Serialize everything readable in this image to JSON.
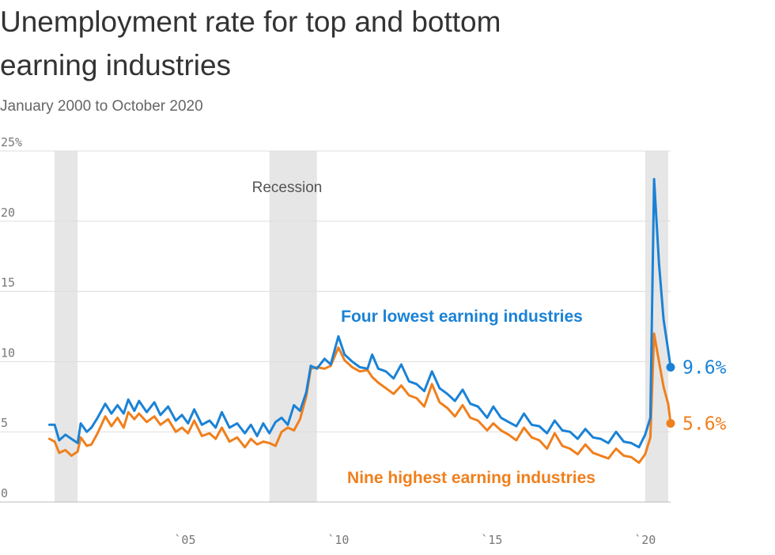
{
  "header": {
    "title": "Unemployment rate for top and bottom earning industries",
    "subtitle": "January 2000 to October 2020"
  },
  "chart_data": {
    "type": "line",
    "title": "Unemployment rate for top and bottom earning industries",
    "subtitle": "January 2000 to October 2020",
    "ylim": [
      0,
      25
    ],
    "xlim": [
      2000.0,
      2020.83
    ],
    "y_ticks": [
      {
        "value": 25,
        "label": "25%"
      },
      {
        "value": 20,
        "label": "20"
      },
      {
        "value": 15,
        "label": "15"
      },
      {
        "value": 10,
        "label": "10"
      },
      {
        "value": 5,
        "label": "5"
      },
      {
        "value": 0,
        "label": "0"
      }
    ],
    "x_ticks": [
      {
        "value": 2005,
        "label": "`05"
      },
      {
        "value": 2010,
        "label": "`10"
      },
      {
        "value": 2015,
        "label": "`15"
      },
      {
        "value": 2020,
        "label": "`20"
      }
    ],
    "grid": true,
    "recession_label": "Recession",
    "recessions": [
      [
        2000.75,
        2001.5
      ],
      [
        2007.75,
        2009.3
      ],
      [
        2020.0,
        2020.75
      ]
    ],
    "series": [
      {
        "name": "Four lowest earning industries",
        "label": "Four lowest earning industries",
        "color": "#1a82d6",
        "end_label": "9.6%",
        "points": [
          [
            2000.58,
            5.5
          ],
          [
            2000.75,
            5.5
          ],
          [
            2000.9,
            4.4
          ],
          [
            2001.1,
            4.8
          ],
          [
            2001.3,
            4.5
          ],
          [
            2001.5,
            4.2
          ],
          [
            2001.6,
            5.6
          ],
          [
            2001.8,
            5.0
          ],
          [
            2001.95,
            5.3
          ],
          [
            2002.15,
            6.0
          ],
          [
            2002.4,
            7.0
          ],
          [
            2002.6,
            6.3
          ],
          [
            2002.8,
            6.9
          ],
          [
            2003.0,
            6.3
          ],
          [
            2003.15,
            7.3
          ],
          [
            2003.35,
            6.5
          ],
          [
            2003.5,
            7.2
          ],
          [
            2003.75,
            6.4
          ],
          [
            2004.0,
            7.1
          ],
          [
            2004.2,
            6.2
          ],
          [
            2004.45,
            6.8
          ],
          [
            2004.7,
            5.8
          ],
          [
            2004.9,
            6.2
          ],
          [
            2005.1,
            5.6
          ],
          [
            2005.3,
            6.6
          ],
          [
            2005.55,
            5.5
          ],
          [
            2005.8,
            5.8
          ],
          [
            2006.0,
            5.3
          ],
          [
            2006.2,
            6.4
          ],
          [
            2006.45,
            5.3
          ],
          [
            2006.7,
            5.6
          ],
          [
            2006.95,
            4.9
          ],
          [
            2007.15,
            5.5
          ],
          [
            2007.35,
            4.7
          ],
          [
            2007.55,
            5.6
          ],
          [
            2007.75,
            4.9
          ],
          [
            2007.95,
            5.7
          ],
          [
            2008.15,
            6.0
          ],
          [
            2008.35,
            5.5
          ],
          [
            2008.55,
            6.9
          ],
          [
            2008.75,
            6.5
          ],
          [
            2008.95,
            7.8
          ],
          [
            2009.1,
            9.7
          ],
          [
            2009.3,
            9.5
          ],
          [
            2009.55,
            10.2
          ],
          [
            2009.75,
            9.8
          ],
          [
            2010.0,
            11.8
          ],
          [
            2010.2,
            10.5
          ],
          [
            2010.45,
            10.0
          ],
          [
            2010.7,
            9.6
          ],
          [
            2010.95,
            9.5
          ],
          [
            2011.1,
            10.5
          ],
          [
            2011.3,
            9.5
          ],
          [
            2011.55,
            9.3
          ],
          [
            2011.8,
            8.8
          ],
          [
            2012.05,
            9.8
          ],
          [
            2012.3,
            8.6
          ],
          [
            2012.55,
            8.4
          ],
          [
            2012.8,
            7.9
          ],
          [
            2013.05,
            9.3
          ],
          [
            2013.3,
            8.1
          ],
          [
            2013.55,
            7.7
          ],
          [
            2013.8,
            7.2
          ],
          [
            2014.05,
            8.0
          ],
          [
            2014.3,
            7.0
          ],
          [
            2014.55,
            6.8
          ],
          [
            2014.85,
            6.0
          ],
          [
            2015.05,
            6.8
          ],
          [
            2015.3,
            6.0
          ],
          [
            2015.55,
            5.7
          ],
          [
            2015.8,
            5.4
          ],
          [
            2016.05,
            6.3
          ],
          [
            2016.3,
            5.5
          ],
          [
            2016.55,
            5.4
          ],
          [
            2016.8,
            4.9
          ],
          [
            2017.05,
            5.8
          ],
          [
            2017.3,
            5.1
          ],
          [
            2017.55,
            5.0
          ],
          [
            2017.8,
            4.5
          ],
          [
            2018.05,
            5.2
          ],
          [
            2018.3,
            4.6
          ],
          [
            2018.55,
            4.5
          ],
          [
            2018.8,
            4.2
          ],
          [
            2019.05,
            5.0
          ],
          [
            2019.3,
            4.3
          ],
          [
            2019.55,
            4.2
          ],
          [
            2019.8,
            3.9
          ],
          [
            2020.0,
            4.8
          ],
          [
            2020.17,
            6.0
          ],
          [
            2020.29,
            23.0
          ],
          [
            2020.45,
            17.0
          ],
          [
            2020.6,
            13.0
          ],
          [
            2020.75,
            10.8
          ],
          [
            2020.83,
            9.6
          ]
        ]
      },
      {
        "name": "Nine highest earning industries",
        "label": "Nine highest earning industries",
        "color": "#f07f1c",
        "end_label": "5.6%",
        "points": [
          [
            2000.58,
            4.5
          ],
          [
            2000.75,
            4.3
          ],
          [
            2000.9,
            3.5
          ],
          [
            2001.1,
            3.7
          ],
          [
            2001.3,
            3.3
          ],
          [
            2001.5,
            3.6
          ],
          [
            2001.6,
            4.6
          ],
          [
            2001.8,
            4.0
          ],
          [
            2001.95,
            4.1
          ],
          [
            2002.15,
            4.9
          ],
          [
            2002.4,
            6.1
          ],
          [
            2002.6,
            5.4
          ],
          [
            2002.8,
            6.0
          ],
          [
            2003.0,
            5.3
          ],
          [
            2003.15,
            6.4
          ],
          [
            2003.35,
            5.9
          ],
          [
            2003.5,
            6.3
          ],
          [
            2003.75,
            5.7
          ],
          [
            2004.0,
            6.1
          ],
          [
            2004.2,
            5.5
          ],
          [
            2004.45,
            5.9
          ],
          [
            2004.7,
            5.0
          ],
          [
            2004.9,
            5.3
          ],
          [
            2005.1,
            4.9
          ],
          [
            2005.3,
            5.8
          ],
          [
            2005.55,
            4.7
          ],
          [
            2005.8,
            4.9
          ],
          [
            2006.0,
            4.5
          ],
          [
            2006.2,
            5.3
          ],
          [
            2006.45,
            4.3
          ],
          [
            2006.7,
            4.6
          ],
          [
            2006.95,
            3.9
          ],
          [
            2007.15,
            4.5
          ],
          [
            2007.35,
            4.1
          ],
          [
            2007.55,
            4.3
          ],
          [
            2007.75,
            4.2
          ],
          [
            2007.95,
            4.0
          ],
          [
            2008.15,
            5.0
          ],
          [
            2008.35,
            5.3
          ],
          [
            2008.55,
            5.1
          ],
          [
            2008.75,
            5.9
          ],
          [
            2008.95,
            7.5
          ],
          [
            2009.1,
            9.5
          ],
          [
            2009.3,
            9.6
          ],
          [
            2009.55,
            9.5
          ],
          [
            2009.75,
            9.7
          ],
          [
            2010.0,
            11.0
          ],
          [
            2010.2,
            10.1
          ],
          [
            2010.45,
            9.6
          ],
          [
            2010.7,
            9.3
          ],
          [
            2010.95,
            9.4
          ],
          [
            2011.1,
            8.9
          ],
          [
            2011.3,
            8.5
          ],
          [
            2011.55,
            8.1
          ],
          [
            2011.8,
            7.7
          ],
          [
            2012.05,
            8.3
          ],
          [
            2012.3,
            7.6
          ],
          [
            2012.55,
            7.4
          ],
          [
            2012.8,
            6.8
          ],
          [
            2013.05,
            8.4
          ],
          [
            2013.3,
            7.1
          ],
          [
            2013.55,
            6.7
          ],
          [
            2013.8,
            6.1
          ],
          [
            2014.05,
            6.9
          ],
          [
            2014.3,
            6.0
          ],
          [
            2014.55,
            5.8
          ],
          [
            2014.85,
            5.1
          ],
          [
            2015.05,
            5.6
          ],
          [
            2015.3,
            5.1
          ],
          [
            2015.55,
            4.8
          ],
          [
            2015.8,
            4.4
          ],
          [
            2016.05,
            5.3
          ],
          [
            2016.3,
            4.6
          ],
          [
            2016.55,
            4.4
          ],
          [
            2016.8,
            3.8
          ],
          [
            2017.05,
            4.9
          ],
          [
            2017.3,
            4.0
          ],
          [
            2017.55,
            3.8
          ],
          [
            2017.8,
            3.4
          ],
          [
            2018.05,
            4.1
          ],
          [
            2018.3,
            3.5
          ],
          [
            2018.55,
            3.3
          ],
          [
            2018.8,
            3.1
          ],
          [
            2019.05,
            3.8
          ],
          [
            2019.3,
            3.3
          ],
          [
            2019.55,
            3.2
          ],
          [
            2019.8,
            2.8
          ],
          [
            2020.0,
            3.4
          ],
          [
            2020.17,
            4.6
          ],
          [
            2020.29,
            12.0
          ],
          [
            2020.45,
            10.0
          ],
          [
            2020.6,
            8.2
          ],
          [
            2020.75,
            7.0
          ],
          [
            2020.83,
            5.6
          ]
        ]
      }
    ],
    "annotations": [
      {
        "text": "Four lowest earning industries",
        "series": 0
      },
      {
        "text": "Nine highest earning industries",
        "series": 1
      }
    ]
  }
}
